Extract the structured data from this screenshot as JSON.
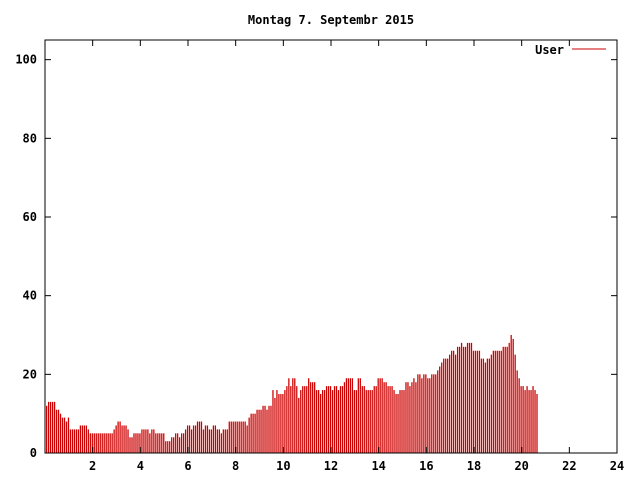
{
  "chart_data": {
    "type": "bar",
    "title": "Montag 7. Septembr 2015",
    "xlabel": "",
    "ylabel": "",
    "xlim": [
      0,
      24
    ],
    "ylim": [
      0,
      105
    ],
    "x_ticks": [
      2,
      4,
      6,
      8,
      10,
      12,
      14,
      16,
      18,
      20,
      22,
      24
    ],
    "y_ticks": [
      0,
      20,
      40,
      60,
      80,
      100
    ],
    "grid": false,
    "legend": {
      "position": "top-right",
      "entries": [
        "User"
      ]
    },
    "color": "#cc0000",
    "sample_interval_hours": 0.0833,
    "series": [
      {
        "name": "User",
        "values": [
          12,
          13,
          13,
          13,
          13,
          11,
          11,
          10,
          9,
          9,
          8,
          9,
          6,
          6,
          6,
          6,
          6,
          7,
          7,
          7,
          7,
          6,
          5,
          5,
          5,
          5,
          5,
          5,
          5,
          5,
          5,
          5,
          5,
          5,
          6,
          7,
          8,
          8,
          7,
          7,
          7,
          6,
          4,
          4,
          5,
          5,
          5,
          5,
          6,
          6,
          6,
          6,
          5,
          6,
          6,
          5,
          5,
          5,
          5,
          5,
          3,
          3,
          3,
          4,
          4,
          5,
          5,
          4,
          5,
          5,
          6,
          7,
          7,
          6,
          7,
          7,
          8,
          8,
          8,
          6,
          7,
          7,
          6,
          6,
          7,
          7,
          6,
          6,
          5,
          6,
          6,
          6,
          8,
          8,
          8,
          8,
          8,
          8,
          8,
          8,
          8,
          7,
          9,
          10,
          10,
          10,
          11,
          11,
          11,
          12,
          12,
          11,
          12,
          12,
          16,
          14,
          16,
          15,
          15,
          15,
          16,
          17,
          19,
          17,
          19,
          19,
          17,
          14,
          16,
          17,
          17,
          17,
          19,
          18,
          18,
          18,
          16,
          16,
          15,
          16,
          16,
          17,
          17,
          17,
          16,
          17,
          17,
          16,
          17,
          17,
          18,
          19,
          19,
          19,
          19,
          16,
          16,
          19,
          19,
          17,
          17,
          16,
          16,
          16,
          16,
          17,
          17,
          19,
          19,
          19,
          18,
          18,
          17,
          17,
          17,
          16,
          15,
          15,
          16,
          16,
          16,
          18,
          18,
          17,
          18,
          19,
          18,
          20,
          20,
          19,
          20,
          20,
          19,
          19,
          20,
          20,
          20,
          21,
          22,
          23,
          24,
          24,
          24,
          25,
          26,
          26,
          25,
          27,
          27,
          28,
          27,
          27,
          28,
          28,
          28,
          26,
          26,
          26,
          26,
          24,
          24,
          23,
          24,
          24,
          25,
          26,
          26,
          26,
          26,
          26,
          27,
          27,
          27,
          28,
          30,
          29,
          25,
          21,
          19,
          17,
          17,
          16,
          17,
          16,
          16,
          17,
          16,
          15
        ]
      }
    ]
  }
}
